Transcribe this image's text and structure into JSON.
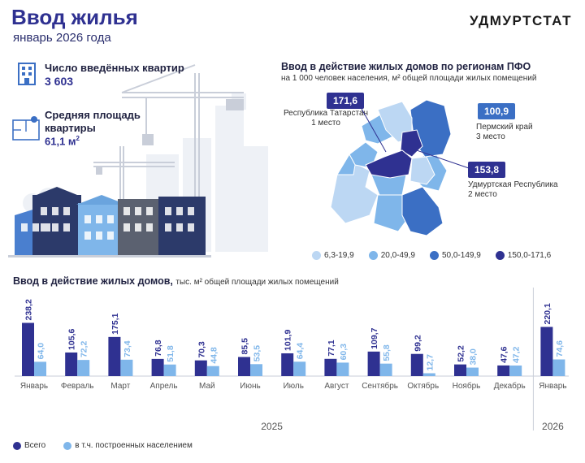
{
  "header": {
    "title": "Ввод жилья",
    "subtitle": "январь 2026 года",
    "brand": "УДМУРТСТАТ"
  },
  "stats": {
    "apartments_label": "Число введённых квартир",
    "apartments_value": "3 603",
    "area_label_line1": "Средняя площадь",
    "area_label_line2": "квартиры",
    "area_value": "61,1 м",
    "area_unit_sup": "2"
  },
  "map": {
    "title": "Ввод в действие жилых домов по регионам ПФО",
    "subtitle": "на 1 000 человек населения, м² общей площади жилых помещений",
    "callouts": [
      {
        "value": "171,6",
        "name_line1": "Республика Татарстан",
        "name_line2": "1 место"
      },
      {
        "value": "100,9",
        "name_line1": "Пермский край",
        "name_line2": "3 место"
      },
      {
        "value": "153,8",
        "name_line1": "Удмуртская Республика",
        "name_line2": "2 место"
      }
    ],
    "legend": [
      {
        "label": "6,3-19,9",
        "color": "#bcd7f3"
      },
      {
        "label": "20,0-49,9",
        "color": "#7fb6ea"
      },
      {
        "label": "50,0-149,9",
        "color": "#3b6fc4"
      },
      {
        "label": "150,0-171,6",
        "color": "#2f3191"
      }
    ]
  },
  "chart_data": {
    "type": "bar",
    "title": "Ввод в действие жилых домов,",
    "subtitle": "тыс. м² общей площади жилых помещений",
    "categories": [
      "Январь",
      "Февраль",
      "Март",
      "Апрель",
      "Май",
      "Июнь",
      "Июль",
      "Август",
      "Сентябрь",
      "Октябрь",
      "Ноябрь",
      "Декабрь",
      "Январь"
    ],
    "year_groups": [
      {
        "label": "2025",
        "from": 0,
        "to": 11
      },
      {
        "label": "2026",
        "from": 12,
        "to": 12
      }
    ],
    "series": [
      {
        "name": "Всего",
        "color": "#2f3191",
        "values": [
          238.2,
          105.6,
          175.1,
          76.8,
          70.3,
          85.5,
          101.9,
          77.1,
          109.7,
          99.2,
          52.2,
          47.6,
          220.1
        ],
        "labels": [
          "238,2",
          "105,6",
          "175,1",
          "76,8",
          "70,3",
          "85,5",
          "101,9",
          "77,1",
          "109,7",
          "99,2",
          "52,2",
          "47,6",
          "220,1"
        ]
      },
      {
        "name": "в т.ч. построенных населением",
        "color": "#7fb6ea",
        "values": [
          64.0,
          72.2,
          73.4,
          51.8,
          44.8,
          53.5,
          64.4,
          60.3,
          55.8,
          12.7,
          38.0,
          47.2,
          74.6
        ],
        "labels": [
          "64,0",
          "72,2",
          "73,4",
          "51,8",
          "44,8",
          "53,5",
          "64,4",
          "60,3",
          "55,8",
          "12,7",
          "38,0",
          "47,2",
          "74,6"
        ]
      }
    ],
    "ylim": [
      0,
      240
    ],
    "legend_position": "bottom-left",
    "grid": false
  }
}
